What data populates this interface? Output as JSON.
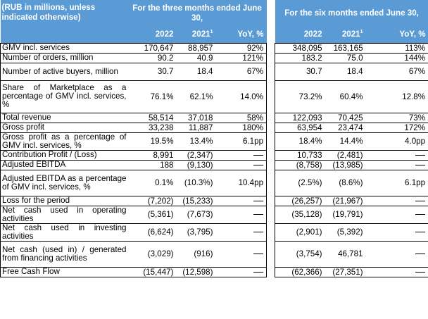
{
  "header": {
    "units_note": "(RUB in millions, unless indicated otherwise)",
    "three_months": "For the three months ended June 30,",
    "six_months": "For the six months ended June 30,",
    "col_2022": "2022",
    "col_2021": "2021",
    "col_2021_sup": "1",
    "col_yoy": "YoY, %"
  },
  "rows": [
    {
      "label": "GMV incl. services",
      "q22": "170,647",
      "q21": "88,957",
      "qyoy": "92%",
      "h22": "348,095",
      "h21": "163,165",
      "hyoy": "113%"
    },
    {
      "label": "Number of orders, million",
      "q22": "90.2",
      "q21": "40.9",
      "qyoy": "121%",
      "h22": "183.2",
      "h21": "75.0",
      "hyoy": "144%"
    },
    {
      "label": "Number of active buyers, million",
      "q22": "30.7",
      "q21": "18.4",
      "qyoy": "67%",
      "h22": "30.7",
      "h21": "18.4",
      "hyoy": "67%"
    },
    {
      "label": "Share of Marketplace as a percentage of GMV incl. services, %",
      "q22": "76.1%",
      "q21": "62.1%",
      "qyoy": "14.0%",
      "h22": "73.2%",
      "h21": "60.4%",
      "hyoy": "12.8%"
    },
    {
      "label": "Total revenue",
      "q22": "58,514",
      "q21": "37,018",
      "qyoy": "58%",
      "h22": "122,093",
      "h21": "70,425",
      "hyoy": "73%"
    },
    {
      "label": "Gross profit",
      "q22": "33,238",
      "q21": "11,887",
      "qyoy": "180%",
      "h22": "63,954",
      "h21": "23,474",
      "hyoy": "172%"
    },
    {
      "label": "Gross profit as a percentage of GMV incl. services, %",
      "q22": "19.5%",
      "q21": "13.4%",
      "qyoy": "6.1pp",
      "h22": "18.4%",
      "h21": "14.4%",
      "hyoy": "4.0pp"
    },
    {
      "label": "Contribution Profit / (Loss)",
      "q22": "8,991",
      "q21": "(2,347)",
      "qyoy": "",
      "h22": "10,733",
      "h21": "(2,481)",
      "hyoy": ""
    },
    {
      "label": "Adjusted EBITDA",
      "q22": "188",
      "q21": "(9,130)",
      "qyoy": "",
      "h22": "(8,758)",
      "h21": "(13,985)",
      "hyoy": ""
    },
    {
      "label": "Adjusted EBITDA as a percentage of GMV incl. services, %",
      "q22": "0.1%",
      "q21": "(10.3%)",
      "qyoy": "10.4pp",
      "h22": "(2.5%)",
      "h21": "(8.6%)",
      "hyoy": "6.1pp"
    },
    {
      "label": "Loss for the period",
      "q22": "(7,202)",
      "q21": "(15,233)",
      "qyoy": "",
      "h22": "(26,257)",
      "h21": "(21,967)",
      "hyoy": ""
    },
    {
      "label": "Net cash used in operating activities",
      "q22": "(5,361)",
      "q21": "(7,673)",
      "qyoy": "",
      "h22": "(35,128)",
      "h21": "(19,791)",
      "hyoy": ""
    },
    {
      "label": "Net cash used in investing activities",
      "q22": "(6,624)",
      "q21": "(3,795)",
      "qyoy": "",
      "h22": "(2,901)",
      "h21": "(5,392)",
      "hyoy": ""
    },
    {
      "label": "Net cash (used in) / generated from financing activities",
      "q22": "(3,029)",
      "q21": "(916)",
      "qyoy": "",
      "h22": "(3,754)",
      "h21": "46,781",
      "hyoy": ""
    },
    {
      "label": "Free Cash Flow",
      "q22": "(15,447)",
      "q21": "(12,598)",
      "qyoy": "",
      "h22": "(62,366)",
      "h21": "(27,351)",
      "hyoy": ""
    }
  ]
}
